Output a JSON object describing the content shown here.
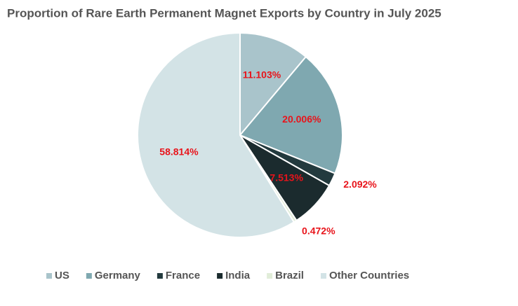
{
  "chart_data": {
    "type": "pie",
    "title": "Proportion of Rare Earth Permanent Magnet Exports by Country in July 2025",
    "categories": [
      "US",
      "Germany",
      "France",
      "India",
      "Brazil",
      "Other Countries"
    ],
    "values": [
      11.103,
      20.006,
      2.092,
      7.513,
      0.472,
      58.814
    ],
    "value_labels": [
      "11.103%",
      "20.006%",
      "2.092%",
      "7.513%",
      "0.472%",
      "58.814%"
    ],
    "colors": [
      "#a9c4cb",
      "#7fa8b0",
      "#233a3e",
      "#1b2b2e",
      "#e1edd9",
      "#d3e3e6"
    ],
    "legend": "bottom"
  }
}
